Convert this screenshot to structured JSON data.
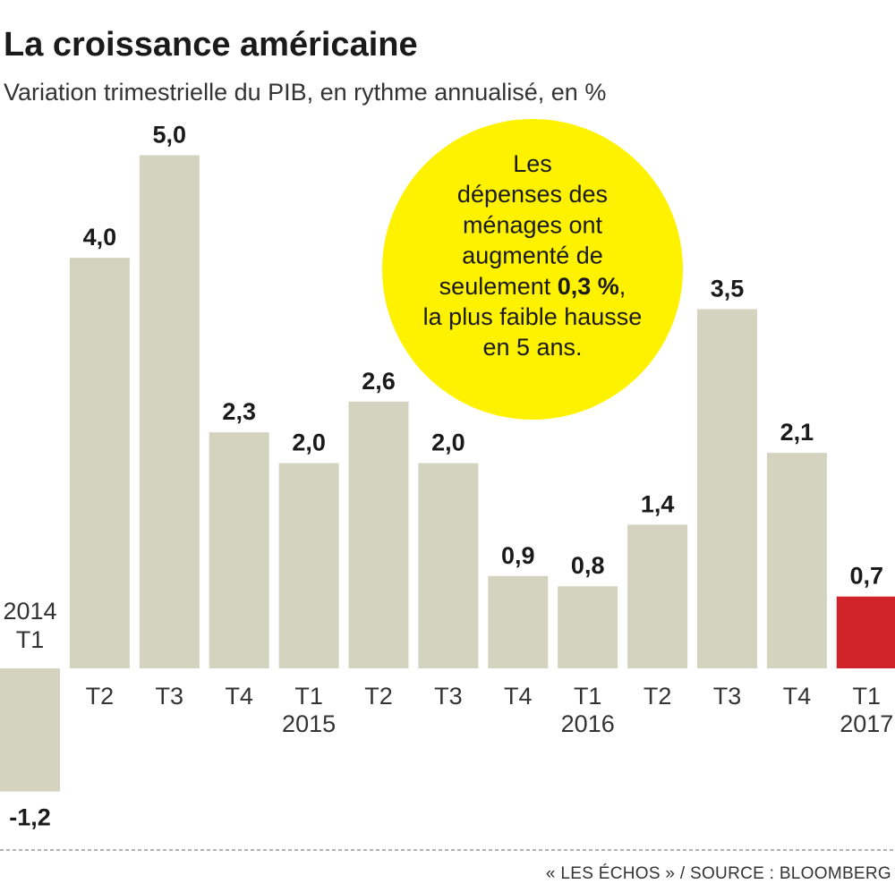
{
  "chart_data": {
    "type": "bar",
    "title": "La croissance américaine",
    "subtitle": "Variation trimestrielle du PIB, en rythme annualisé, en %",
    "categories": [
      "T1",
      "T2",
      "T3",
      "T4",
      "T1",
      "T2",
      "T3",
      "T4",
      "T1",
      "T2",
      "T3",
      "T4",
      "T1"
    ],
    "year_labels": [
      "2014",
      "",
      "",
      "",
      "2015",
      "",
      "",
      "",
      "2016",
      "",
      "",
      "",
      "2017"
    ],
    "values": [
      -1.2,
      4.0,
      5.0,
      2.3,
      2.0,
      2.6,
      2.0,
      0.9,
      0.8,
      1.4,
      3.5,
      2.1,
      0.7
    ],
    "value_labels": [
      "-1,2",
      "4,0",
      "5,0",
      "2,3",
      "2,0",
      "2,6",
      "2,0",
      "0,9",
      "0,8",
      "1,4",
      "3,5",
      "2,1",
      "0,7"
    ],
    "ylim": [
      -1.2,
      5.0
    ],
    "colors": {
      "bar": "#d4d3c0",
      "highlight": "#d1232a",
      "callout": "#fff200",
      "separator": "#999999"
    },
    "highlight_index": 12,
    "callout": {
      "lines": [
        [
          {
            "text": "Les",
            "bold": false
          }
        ],
        [
          {
            "text": "dépenses des",
            "bold": false
          }
        ],
        [
          {
            "text": "ménages ont",
            "bold": false
          }
        ],
        [
          {
            "text": "augmenté de",
            "bold": false
          }
        ],
        [
          {
            "text": "seulement ",
            "bold": false
          },
          {
            "text": "0,3 %",
            "bold": true
          },
          {
            "text": ",",
            "bold": false
          }
        ],
        [
          {
            "text": "la plus faible hausse",
            "bold": false
          }
        ],
        [
          {
            "text": "en 5 ans.",
            "bold": false
          }
        ]
      ]
    },
    "source": "« LES ÉCHOS » / SOURCE : BLOOMBERG",
    "grid": false,
    "legend": "none"
  }
}
